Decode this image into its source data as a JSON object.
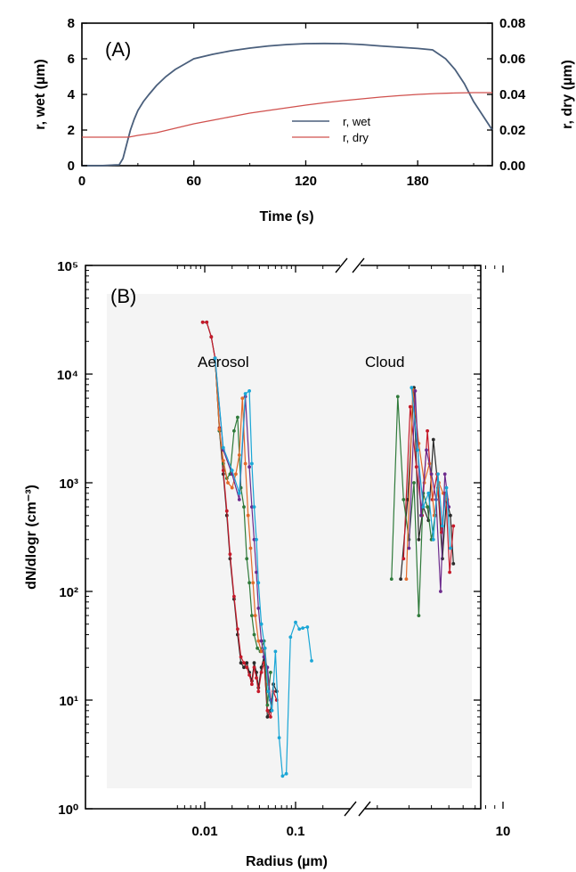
{
  "colors": {
    "wet": "#4a5f7c",
    "dry": "#d0504d",
    "background_B": "#f4f4f4",
    "series_B": [
      "#2a2a2a",
      "#c51a2a",
      "#2f7a3a",
      "#e36a2a",
      "#6c2a8c",
      "#1aa6d6"
    ]
  },
  "chart_data": [
    {
      "type": "line",
      "panel_label": "(A)",
      "xlabel": "Time (s)",
      "ylabel": "r, wet (µm)",
      "y2label": "r, dry (µm)",
      "xlim": [
        0,
        220
      ],
      "ylim": [
        0,
        8
      ],
      "y2lim": [
        0,
        0.08
      ],
      "xticks": [
        "0",
        "60",
        "120",
        "180"
      ],
      "xtick_values": [
        0,
        60,
        120,
        180
      ],
      "yticks": [
        "0",
        "2",
        "4",
        "6",
        "8"
      ],
      "ytick_values": [
        0,
        2,
        4,
        6,
        8
      ],
      "y2ticks": [
        "0.00",
        "0.02",
        "0.04",
        "0.06",
        "0.08"
      ],
      "y2tick_values": [
        0,
        0.02,
        0.04,
        0.06,
        0.08
      ],
      "legend_position": "lower-right",
      "grid": false,
      "series": [
        {
          "name": "r, wet",
          "axis": "left",
          "x": [
            0,
            10,
            20,
            22,
            24,
            26,
            28,
            30,
            33,
            36,
            40,
            45,
            50,
            55,
            60,
            70,
            80,
            90,
            100,
            110,
            120,
            130,
            140,
            150,
            160,
            170,
            180,
            188,
            195,
            200,
            205,
            210,
            215,
            220
          ],
          "y": [
            0,
            0,
            0.05,
            0.4,
            1.2,
            2.0,
            2.6,
            3.1,
            3.6,
            4.0,
            4.5,
            5.0,
            5.4,
            5.7,
            6.0,
            6.25,
            6.45,
            6.6,
            6.72,
            6.8,
            6.85,
            6.86,
            6.85,
            6.8,
            6.72,
            6.65,
            6.58,
            6.5,
            6.0,
            5.4,
            4.6,
            3.6,
            2.8,
            2.0
          ]
        },
        {
          "name": "r, dry",
          "axis": "right",
          "x": [
            0,
            10,
            20,
            25,
            30,
            40,
            50,
            60,
            70,
            80,
            90,
            100,
            110,
            120,
            130,
            140,
            150,
            160,
            170,
            180,
            190,
            200,
            210,
            220
          ],
          "y": [
            0.016,
            0.016,
            0.016,
            0.016,
            0.017,
            0.0185,
            0.021,
            0.0235,
            0.0255,
            0.0275,
            0.0295,
            0.031,
            0.0325,
            0.034,
            0.0353,
            0.0365,
            0.0375,
            0.0385,
            0.0393,
            0.04,
            0.0405,
            0.0408,
            0.041,
            0.041
          ]
        }
      ]
    },
    {
      "type": "line",
      "panel_label": "(B)",
      "xlabel": "Radius (µm)",
      "ylabel": "dN/dlogr (cm⁻³)",
      "x_scale": "log (broken axis)",
      "y_scale": "log",
      "xlim": [
        0.005,
        10
      ],
      "ylim": [
        1,
        100000
      ],
      "xticks": [
        "0.01",
        "0.1",
        "10"
      ],
      "xtick_values": [
        0.01,
        0.1,
        10
      ],
      "yticks": [
        "10⁰",
        "10¹",
        "10²",
        "10³",
        "10⁴",
        "10⁵"
      ],
      "ytick_values": [
        1,
        10,
        100,
        1000,
        10000,
        100000
      ],
      "annotations": [
        "Aerosol",
        "Cloud"
      ],
      "grid": false,
      "series": [
        {
          "x": [
            0.0095,
            0.0105,
            0.0118,
            0.013,
            0.0145,
            0.016,
            0.0175,
            0.019,
            0.021,
            0.023,
            0.025,
            0.027,
            0.029,
            0.031,
            0.033,
            0.035,
            0.037,
            0.039,
            0.042,
            0.045,
            0.049,
            0.053,
            0.057,
            0.062
          ],
          "y": [
            30000,
            30000,
            22000,
            14000,
            3000,
            1200,
            500,
            200,
            85,
            40,
            22,
            20,
            22,
            18,
            15,
            22,
            18,
            13,
            20,
            25,
            7,
            8,
            14,
            12
          ],
          "cloud_x": [
            2.7,
            2.95,
            3.2,
            3.4,
            3.6,
            3.85,
            4.1,
            4.35,
            4.6,
            4.85,
            5.1,
            5.3
          ],
          "cloud_y": [
            130,
            700,
            7500,
            300,
            600,
            450,
            2500,
            900,
            200,
            700,
            500,
            180
          ]
        },
        {
          "x": [
            0.0095,
            0.0105,
            0.0118,
            0.013,
            0.0145,
            0.016,
            0.0175,
            0.019,
            0.021,
            0.023,
            0.025,
            0.027,
            0.029,
            0.031,
            0.033,
            0.035,
            0.037,
            0.039,
            0.042,
            0.045,
            0.049,
            0.053,
            0.057,
            0.062
          ],
          "y": [
            30000,
            30000,
            22000,
            14000,
            3200,
            1300,
            550,
            220,
            90,
            45,
            25,
            22,
            20,
            17,
            14,
            20,
            16,
            12,
            18,
            22,
            8,
            7,
            12,
            10
          ],
          "cloud_x": [
            2.8,
            3.05,
            3.3,
            3.55,
            3.8,
            4.05,
            4.3,
            4.55,
            4.8,
            5.05,
            5.3
          ],
          "cloud_y": [
            200,
            5000,
            1400,
            500,
            3000,
            700,
            1200,
            350,
            800,
            150,
            400
          ]
        },
        {
          "x": [
            0.013,
            0.0145,
            0.016,
            0.0175,
            0.019,
            0.021,
            0.023,
            0.025,
            0.027,
            0.029,
            0.031,
            0.033,
            0.035,
            0.038,
            0.041,
            0.045,
            0.049,
            0.053
          ],
          "y": [
            14000,
            3000,
            1500,
            1100,
            1200,
            3000,
            4000,
            900,
            600,
            200,
            120,
            60,
            40,
            30,
            28,
            35,
            9,
            18
          ],
          "cloud_x": [
            2.4,
            2.6,
            2.8,
            3.0,
            3.2,
            3.4,
            3.6,
            3.8,
            4.0,
            4.2
          ],
          "cloud_y": [
            130,
            6200,
            700,
            300,
            1000,
            60,
            800,
            600,
            300,
            500
          ]
        },
        {
          "x": [
            0.013,
            0.0145,
            0.016,
            0.018,
            0.02,
            0.022,
            0.024,
            0.026,
            0.028,
            0.03,
            0.032,
            0.034,
            0.036,
            0.039,
            0.042,
            0.046,
            0.05
          ],
          "y": [
            14000,
            3100,
            1600,
            1000,
            900,
            1200,
            1800,
            6000,
            1500,
            500,
            250,
            120,
            60,
            35,
            28,
            30,
            14
          ],
          "cloud_x": [
            2.9,
            3.15,
            3.4,
            3.65,
            3.9,
            4.15,
            4.4,
            4.65,
            4.9
          ],
          "cloud_y": [
            130,
            7200,
            2300,
            1000,
            1500,
            500,
            1000,
            800,
            700
          ]
        },
        {
          "x": [
            0.013,
            0.016,
            0.02,
            0.024,
            0.028,
            0.031,
            0.033,
            0.035,
            0.037,
            0.039,
            0.042,
            0.045,
            0.049,
            0.053
          ],
          "y": [
            14000,
            2000,
            1200,
            700,
            6200,
            1400,
            600,
            300,
            150,
            70,
            35,
            25,
            20,
            10
          ],
          "cloud_x": [
            3.0,
            3.25,
            3.5,
            3.75,
            4.0,
            4.25,
            4.5,
            4.75,
            5.0
          ],
          "cloud_y": [
            250,
            7000,
            500,
            2000,
            1200,
            700,
            100,
            1200,
            600
          ]
        },
        {
          "x": [
            0.013,
            0.016,
            0.02,
            0.024,
            0.028,
            0.031,
            0.033,
            0.035,
            0.037,
            0.039,
            0.042,
            0.046,
            0.05,
            0.055,
            0.06,
            0.066,
            0.072,
            0.079,
            0.088,
            0.1,
            0.11,
            0.12,
            0.135,
            0.15
          ],
          "y": [
            14000,
            2100,
            1300,
            800,
            6600,
            7000,
            1500,
            600,
            300,
            120,
            50,
            30,
            12,
            8,
            28,
            4.5,
            2,
            2.1,
            38,
            52,
            45,
            46,
            47,
            23
          ],
          "cloud_x": [
            3.1,
            3.35,
            3.6,
            3.85,
            4.1,
            4.35,
            4.6,
            4.85,
            5.1
          ],
          "cloud_y": [
            7500,
            2000,
            600,
            800,
            300,
            1200,
            400,
            900,
            250
          ]
        }
      ]
    }
  ]
}
